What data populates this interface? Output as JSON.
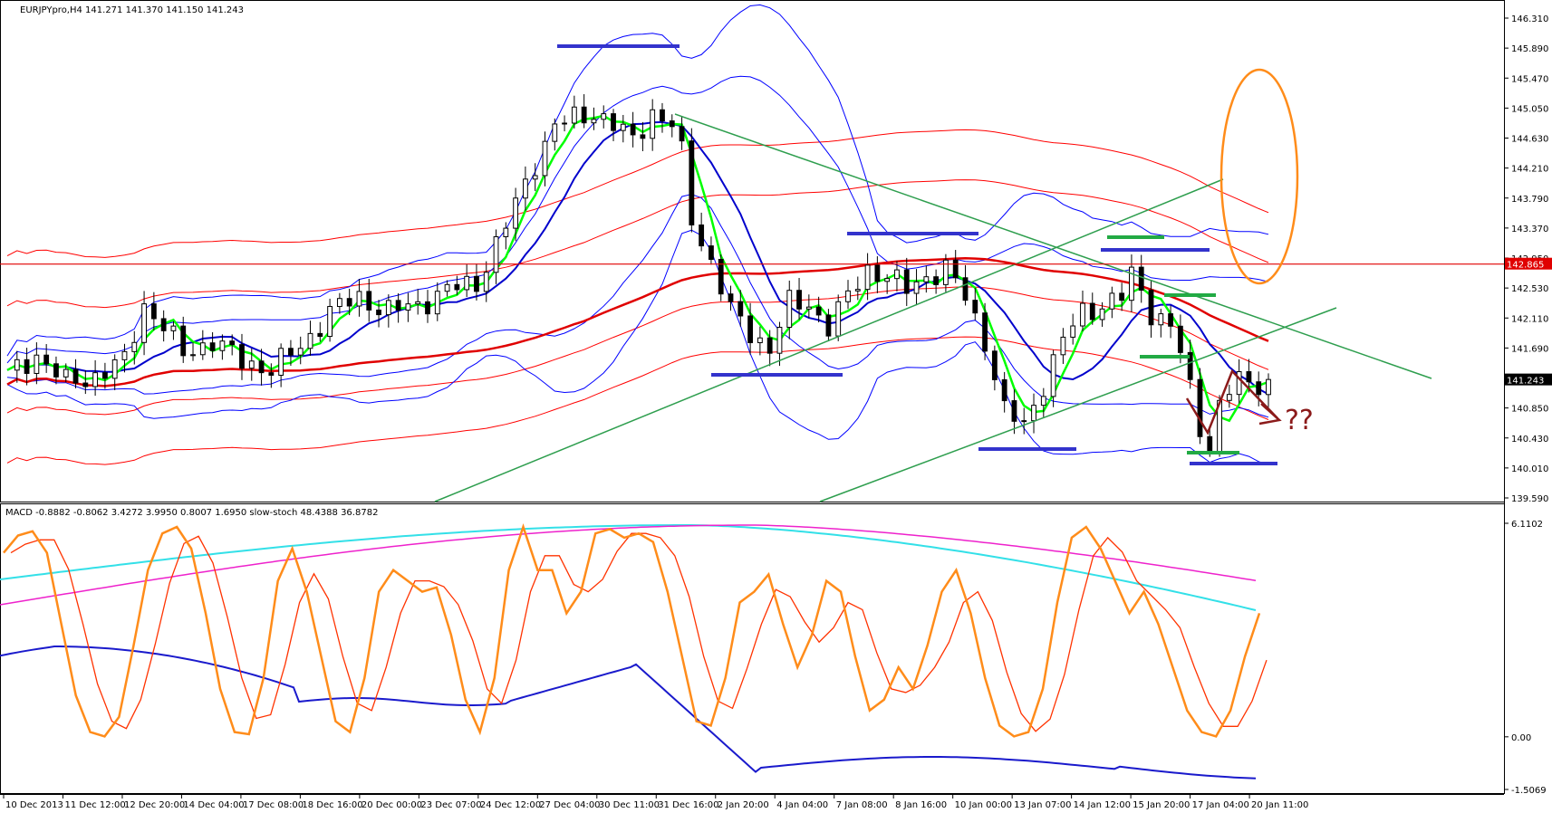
{
  "chart_data": [
    {
      "type": "candlestick",
      "panel": "price",
      "header": "EURJPYpro,H4  141.271 141.370 141.150 141.243",
      "y_ticks": [
        "146.310",
        "145.890",
        "145.470",
        "145.050",
        "144.630",
        "144.210",
        "143.790",
        "143.370",
        "142.950",
        "142.530",
        "142.110",
        "141.690",
        "141.270",
        "140.850",
        "140.430",
        "140.010",
        "139.590"
      ],
      "ylim": [
        139.59,
        146.52
      ],
      "current_price": "141.243",
      "hline": {
        "value": 142.865,
        "label": "142.865",
        "color": "#e00000"
      },
      "x_ticks": [
        "10 Dec 2013",
        "11 Dec 12:00",
        "12 Dec 20:00",
        "14 Dec 04:00",
        "17 Dec 08:00",
        "18 Dec 16:00",
        "20 Dec 00:00",
        "23 Dec 07:00",
        "24 Dec 12:00",
        "27 Dec 04:00",
        "30 Dec 11:00",
        "31 Dec 16:00",
        "2 Jan 20:00",
        "4 Jan 04:00",
        "7 Jan 08:00",
        "8 Jan 16:00",
        "10 Jan 00:00",
        "13 Jan 07:00",
        "14 Jan 12:00",
        "15 Jan 20:00",
        "17 Jan 04:00",
        "20 Jan 11:00"
      ],
      "x_tick_index": [
        0,
        6,
        12,
        18,
        24,
        30,
        36,
        42,
        48,
        54,
        60,
        66,
        72,
        78,
        84,
        90,
        96,
        102,
        108,
        114,
        120,
        126
      ],
      "close_path": [
        [
          0,
          141.3
        ],
        [
          3,
          141.6
        ],
        [
          6,
          141.2
        ],
        [
          9,
          141.3
        ],
        [
          12,
          141.5
        ],
        [
          14,
          142.3
        ],
        [
          16,
          142.0
        ],
        [
          18,
          141.6
        ],
        [
          21,
          141.8
        ],
        [
          24,
          141.5
        ],
        [
          27,
          141.4
        ],
        [
          30,
          141.7
        ],
        [
          33,
          142.2
        ],
        [
          36,
          142.4
        ],
        [
          39,
          142.2
        ],
        [
          42,
          142.3
        ],
        [
          45,
          142.5
        ],
        [
          48,
          142.6
        ],
        [
          51,
          143.4
        ],
        [
          54,
          144.3
        ],
        [
          56,
          144.8
        ],
        [
          58,
          144.9
        ],
        [
          60,
          145.0
        ],
        [
          62,
          144.8
        ],
        [
          64,
          144.6
        ],
        [
          66,
          145.0
        ],
        [
          68,
          144.8
        ],
        [
          69,
          144.4
        ],
        [
          70,
          143.5
        ],
        [
          71,
          143.2
        ],
        [
          72,
          142.9
        ],
        [
          74,
          142.2
        ],
        [
          76,
          141.9
        ],
        [
          78,
          141.7
        ],
        [
          80,
          142.3
        ],
        [
          82,
          142.3
        ],
        [
          84,
          142.0
        ],
        [
          86,
          142.4
        ],
        [
          88,
          142.8
        ],
        [
          90,
          142.7
        ],
        [
          92,
          142.5
        ],
        [
          94,
          142.7
        ],
        [
          96,
          142.8
        ],
        [
          98,
          142.4
        ],
        [
          100,
          141.8
        ],
        [
          101,
          141.3
        ],
        [
          102,
          140.8
        ],
        [
          104,
          140.6
        ],
        [
          106,
          141.2
        ],
        [
          108,
          141.8
        ],
        [
          110,
          142.2
        ],
        [
          112,
          142.3
        ],
        [
          114,
          142.4
        ],
        [
          115,
          142.7
        ],
        [
          116,
          142.5
        ],
        [
          117,
          142.2
        ],
        [
          119,
          142.0
        ],
        [
          120,
          141.6
        ],
        [
          121,
          141.1
        ],
        [
          122,
          140.6
        ],
        [
          123,
          140.3
        ],
        [
          124,
          140.9
        ],
        [
          125,
          141.1
        ],
        [
          126,
          141.2
        ]
      ]
    },
    {
      "type": "line",
      "panel": "indicator",
      "header": "MACD -0.8882 -0.8062 3.4272 3.9950 0.8007 1.6950  slow-stoch 48.4388 36.8782",
      "y_ticks": [
        "6.1102",
        "0.00",
        "-1.5069"
      ],
      "ylim": [
        -1.5069,
        6.1102
      ],
      "stoch_main_k": [
        [
          0,
          88
        ],
        [
          1,
          96
        ],
        [
          2,
          98
        ],
        [
          3,
          88
        ],
        [
          4,
          55
        ],
        [
          5,
          22
        ],
        [
          6,
          5
        ],
        [
          7,
          3
        ],
        [
          8,
          12
        ],
        [
          9,
          45
        ],
        [
          10,
          80
        ],
        [
          11,
          97
        ],
        [
          12,
          100
        ],
        [
          13,
          90
        ],
        [
          14,
          60
        ],
        [
          15,
          25
        ],
        [
          16,
          5
        ],
        [
          17,
          4
        ],
        [
          18,
          30
        ],
        [
          19,
          75
        ],
        [
          20,
          90
        ],
        [
          21,
          70
        ],
        [
          22,
          40
        ],
        [
          23,
          10
        ],
        [
          24,
          5
        ],
        [
          25,
          30
        ],
        [
          26,
          70
        ],
        [
          27,
          80
        ],
        [
          28,
          75
        ],
        [
          29,
          70
        ],
        [
          30,
          72
        ],
        [
          31,
          50
        ],
        [
          32,
          20
        ],
        [
          33,
          5
        ],
        [
          34,
          30
        ],
        [
          35,
          80
        ],
        [
          36,
          100
        ],
        [
          37,
          80
        ],
        [
          38,
          80
        ],
        [
          39,
          60
        ],
        [
          40,
          70
        ],
        [
          41,
          97
        ],
        [
          42,
          99
        ],
        [
          43,
          95
        ],
        [
          44,
          97
        ],
        [
          45,
          93
        ],
        [
          46,
          70
        ],
        [
          47,
          40
        ],
        [
          48,
          10
        ],
        [
          49,
          8
        ],
        [
          50,
          30
        ],
        [
          51,
          65
        ],
        [
          52,
          70
        ],
        [
          53,
          78
        ],
        [
          54,
          55
        ],
        [
          55,
          35
        ],
        [
          56,
          50
        ],
        [
          57,
          75
        ],
        [
          58,
          70
        ],
        [
          59,
          40
        ],
        [
          60,
          15
        ],
        [
          61,
          20
        ],
        [
          62,
          35
        ],
        [
          63,
          25
        ],
        [
          64,
          45
        ],
        [
          65,
          70
        ],
        [
          66,
          80
        ],
        [
          67,
          60
        ],
        [
          68,
          30
        ],
        [
          69,
          8
        ],
        [
          70,
          3
        ],
        [
          71,
          5
        ],
        [
          72,
          25
        ],
        [
          73,
          65
        ],
        [
          74,
          95
        ],
        [
          75,
          100
        ],
        [
          76,
          90
        ],
        [
          77,
          75
        ],
        [
          78,
          60
        ],
        [
          79,
          70
        ],
        [
          80,
          55
        ],
        [
          81,
          35
        ],
        [
          82,
          15
        ],
        [
          83,
          5
        ],
        [
          84,
          3
        ],
        [
          85,
          15
        ],
        [
          86,
          40
        ],
        [
          87,
          60
        ]
      ],
      "legend_words": [
        "MACD",
        "slow-stoch"
      ]
    }
  ],
  "annotations": {
    "question_marks": "??"
  },
  "colors": {
    "bollinger_outer": "#0000ff",
    "envelope": "#ff0000",
    "ma_slow": "#0000cc",
    "ma_fast": "#00ff00",
    "ma_long": "#e00000",
    "trendline": "#2e9e4e",
    "support_resistance_blue": "#3333cc",
    "support_resistance_green": "#22aa44",
    "ellipse": "#ff8c1a",
    "arrow": "#8b1a1a",
    "stoch_orange": "#ff8c1a",
    "stoch_signal": "#ff3300",
    "macd_cyan": "#33e0e8",
    "macd_magenta": "#ee22cc",
    "macd_blue": "#1a1acc",
    "price_line_label_bg": "#e00000"
  }
}
